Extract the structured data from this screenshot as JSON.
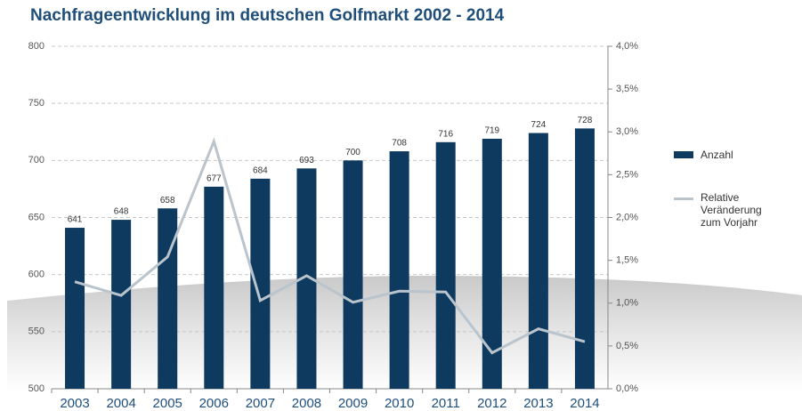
{
  "chart_data": {
    "type": "bar",
    "title": "Nachfrageentwicklung im deutschen Golfmarkt 2002 - 2014",
    "categories": [
      "2003",
      "2004",
      "2005",
      "2006",
      "2007",
      "2008",
      "2009",
      "2010",
      "2011",
      "2012",
      "2013",
      "2014"
    ],
    "series": [
      {
        "name": "Anzahl",
        "type": "bar",
        "color": "#0f3a5f",
        "values": [
          641,
          648,
          658,
          677,
          684,
          693,
          700,
          708,
          716,
          719,
          724,
          728
        ]
      },
      {
        "name": "Relative Veränderung zum Vorjahr",
        "type": "line",
        "axis": "y2",
        "color": "#b9c4cc",
        "values": [
          1.25,
          1.09,
          1.54,
          2.89,
          1.03,
          1.32,
          1.01,
          1.14,
          1.13,
          0.42,
          0.7,
          0.55
        ]
      }
    ],
    "ylim": [
      500,
      800
    ],
    "yticks": [
      500,
      550,
      600,
      650,
      700,
      750,
      800
    ],
    "y2lim": [
      0,
      4
    ],
    "y2ticks": [
      {
        "value": 0,
        "label": "0,0%"
      },
      {
        "value": 0.5,
        "label": "0,5%"
      },
      {
        "value": 1,
        "label": "1,0%"
      },
      {
        "value": 1.5,
        "label": "1,5%"
      },
      {
        "value": 2,
        "label": "2,0%"
      },
      {
        "value": 2.5,
        "label": "2,5%"
      },
      {
        "value": 3,
        "label": "3,0%"
      },
      {
        "value": 3.5,
        "label": "3,5%"
      },
      {
        "value": 4,
        "label": "4,0%"
      }
    ],
    "grid": true,
    "legend": "right"
  }
}
